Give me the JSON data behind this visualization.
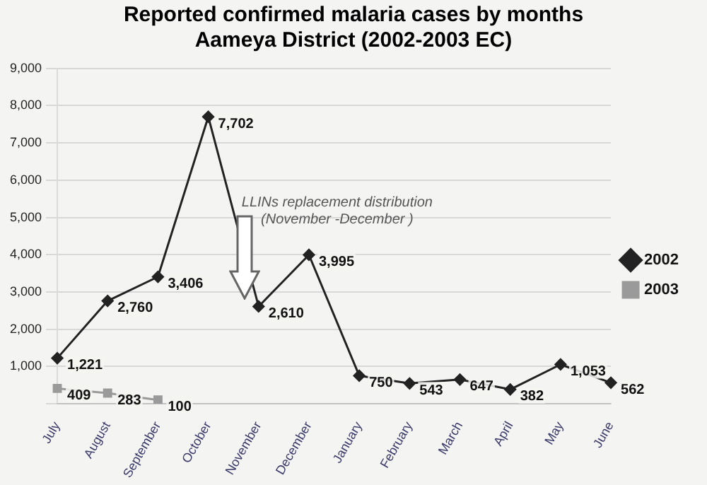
{
  "chart_data": {
    "type": "line",
    "title": "Reported confirmed malaria cases by months\nAameya District (2002-2003 EC)",
    "categories": [
      "July",
      "August",
      "September",
      "October",
      "November",
      "December",
      "January",
      "February",
      "March",
      "April",
      "May",
      "June"
    ],
    "series": [
      {
        "name": "2002",
        "color": "#222222",
        "marker": "diamond",
        "values": [
          1221,
          2760,
          3406,
          7702,
          2610,
          3995,
          750,
          543,
          647,
          382,
          1053,
          562
        ],
        "value_labels": [
          "1,221",
          "2,760",
          "3,406",
          "7,702",
          "2,610",
          "3,995",
          "750",
          "543",
          "647",
          "382",
          "1,053",
          "562"
        ]
      },
      {
        "name": "2003",
        "color": "#9a9a9a",
        "marker": "square",
        "values": [
          409,
          283,
          100,
          null,
          null,
          null,
          null,
          null,
          null,
          null,
          null,
          null
        ],
        "value_labels": [
          "409",
          "283",
          "100",
          null,
          null,
          null,
          null,
          null,
          null,
          null,
          null,
          null
        ]
      }
    ],
    "ylim": [
      0,
      9000
    ],
    "yticks": [
      {
        "value": 0,
        "label": null
      },
      "1,000",
      "2,000",
      "3,000",
      "4,000",
      "5,000",
      "6,000",
      "7,000",
      "8,000",
      "9,000"
    ],
    "grid": "y",
    "legend": "right",
    "annotations": [
      "LLINs replacement distribution\n(November -December )"
    ]
  }
}
